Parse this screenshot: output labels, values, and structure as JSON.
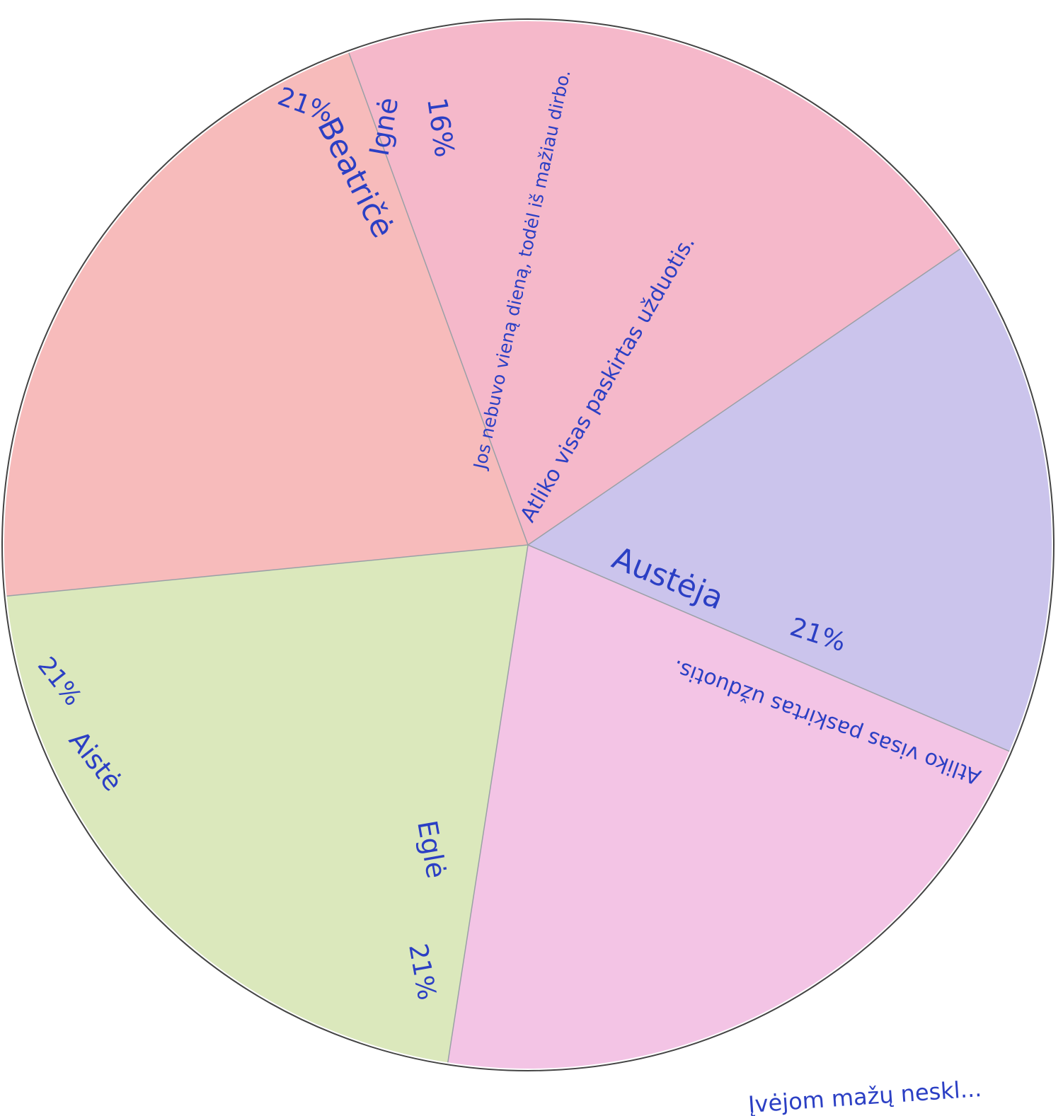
{
  "chart_data": {
    "type": "pie",
    "slices": [
      {
        "name": "Beatričė",
        "label": "21%",
        "value": 21,
        "note": "",
        "color": "#f2a0b8"
      },
      {
        "name": "Ignė",
        "label": "16%",
        "value": 16,
        "note": "Jos nebuvo vieną dieną, todėl iš mažiau dirbo.",
        "color": "#b9b0e6"
      },
      {
        "name": "Austėja",
        "label": "21%",
        "value": 21,
        "note": "Atliko visas paskirtas užduotis.",
        "color": "#efb0dc"
      },
      {
        "name": "Eglė",
        "label": "21%",
        "value": 21,
        "note": "Atliko visas paskirtas užduotis.",
        "color": "#cfe0a6"
      },
      {
        "name": "Aistė",
        "label": "21%",
        "value": 21,
        "note": "",
        "color": "#f4a4a4"
      }
    ],
    "footer_note": "Įvėjom mažų neskl..."
  }
}
